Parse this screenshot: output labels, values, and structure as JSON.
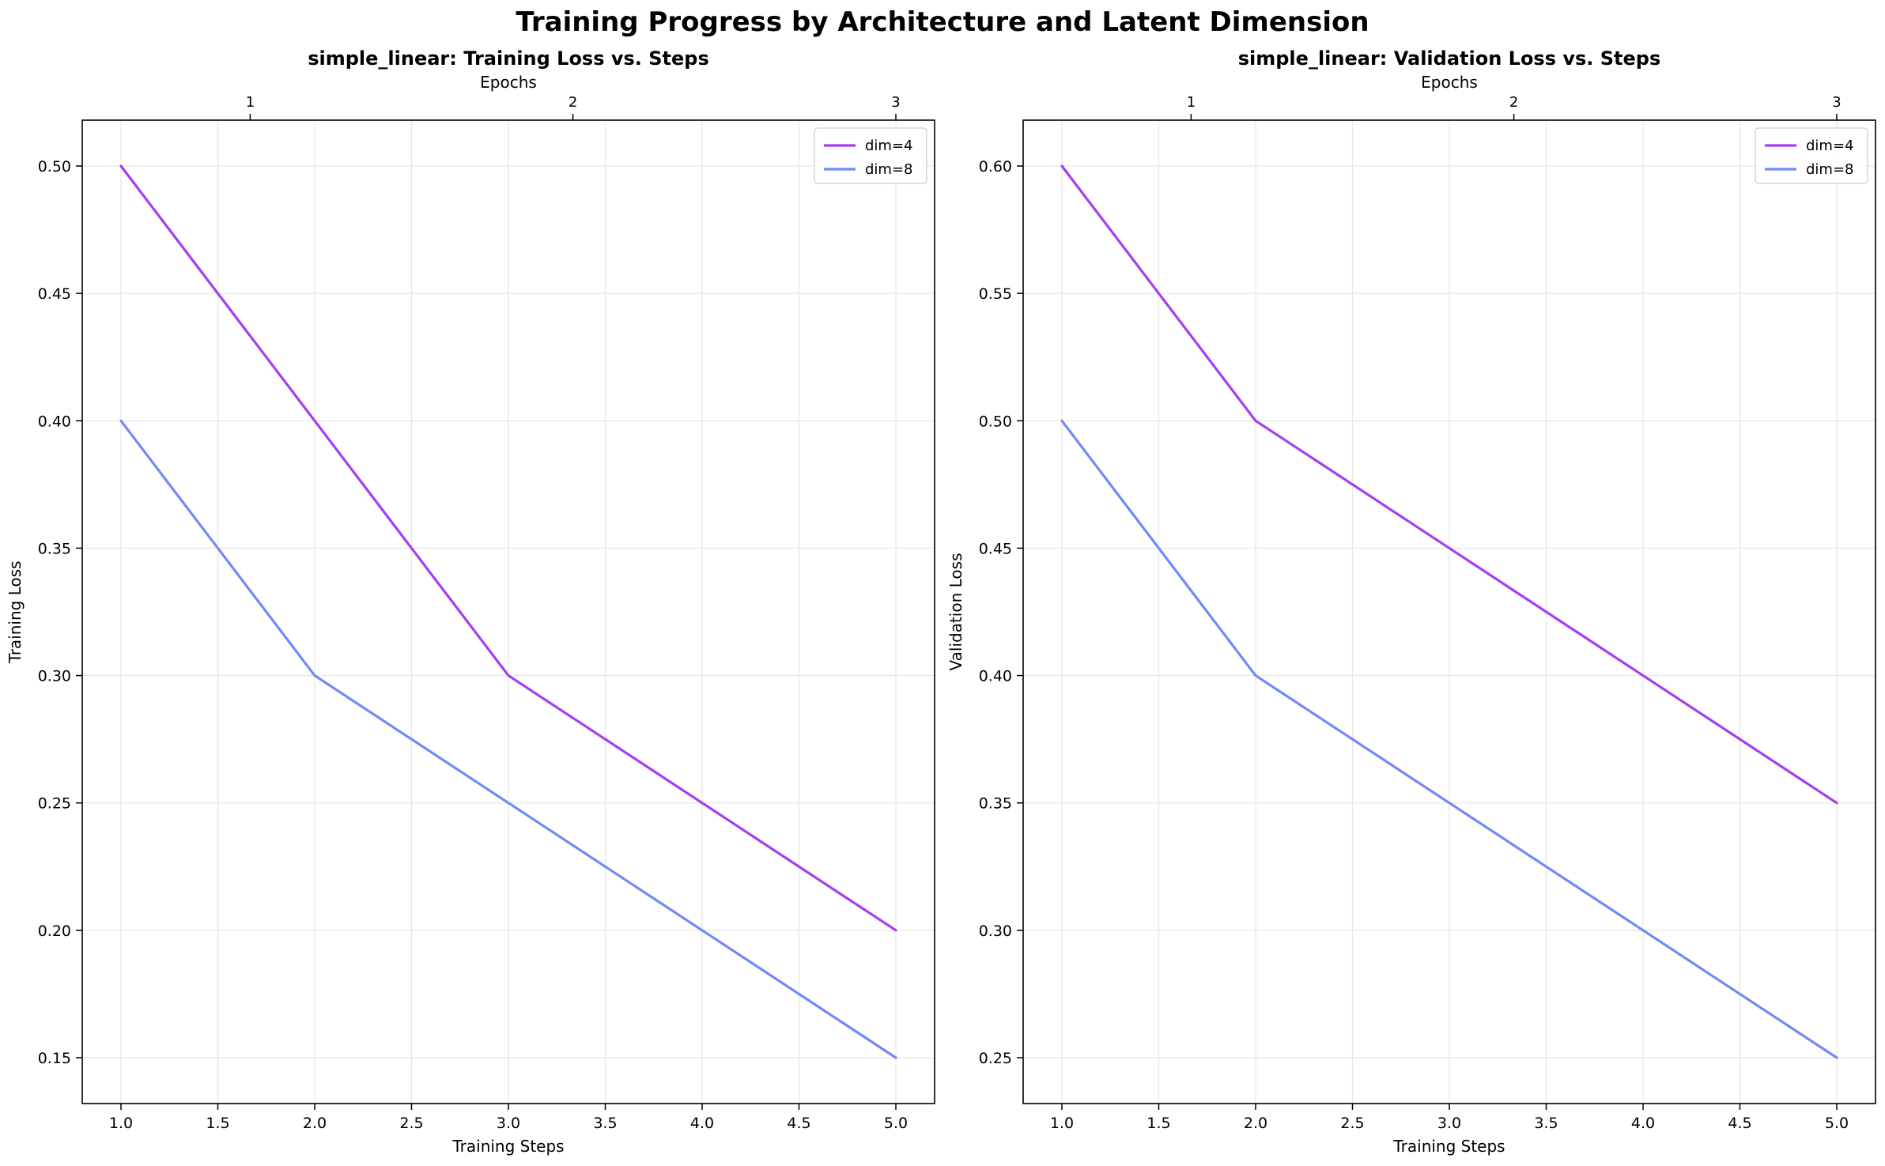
{
  "suptitle": "Training Progress by Architecture and Latent Dimension",
  "colors": {
    "dim4": "#a53df2",
    "dim8": "#7289f7",
    "grid": "#e6e6e6",
    "axis": "#000000"
  },
  "chart_data": [
    {
      "type": "line",
      "title": "simple_linear: Training Loss vs. Steps",
      "xlabel": "Training Steps",
      "ylabel": "Training Loss",
      "top_xlabel": "Epochs",
      "xlim": [
        0.8,
        5.2
      ],
      "ylim": [
        0.132,
        0.518
      ],
      "xticks": [
        1.0,
        1.5,
        2.0,
        2.5,
        3.0,
        3.5,
        4.0,
        4.5,
        5.0
      ],
      "xtick_labels": [
        "1.0",
        "1.5",
        "2.0",
        "2.5",
        "3.0",
        "3.5",
        "4.0",
        "4.5",
        "5.0"
      ],
      "yticks": [
        0.15,
        0.2,
        0.25,
        0.3,
        0.35,
        0.4,
        0.45,
        0.5
      ],
      "ytick_labels": [
        "0.15",
        "0.20",
        "0.25",
        "0.30",
        "0.35",
        "0.40",
        "0.45",
        "0.50"
      ],
      "top_xticks": [
        1.667,
        3.333,
        5.0
      ],
      "top_xtick_labels": [
        "1",
        "2",
        "3"
      ],
      "grid": true,
      "legend": "top-right",
      "x": [
        1,
        2,
        3,
        4,
        5
      ],
      "series": [
        {
          "name": "dim=4",
          "color": "#a53df2",
          "values": [
            0.5,
            0.4,
            0.3,
            0.25,
            0.2
          ]
        },
        {
          "name": "dim=8",
          "color": "#7289f7",
          "values": [
            0.4,
            0.3,
            0.25,
            0.2,
            0.15
          ]
        }
      ]
    },
    {
      "type": "line",
      "title": "simple_linear: Validation Loss vs. Steps",
      "xlabel": "Training Steps",
      "ylabel": "Validation Loss",
      "top_xlabel": "Epochs",
      "xlim": [
        0.8,
        5.2
      ],
      "ylim": [
        0.232,
        0.618
      ],
      "xticks": [
        1.0,
        1.5,
        2.0,
        2.5,
        3.0,
        3.5,
        4.0,
        4.5,
        5.0
      ],
      "xtick_labels": [
        "1.0",
        "1.5",
        "2.0",
        "2.5",
        "3.0",
        "3.5",
        "4.0",
        "4.5",
        "5.0"
      ],
      "yticks": [
        0.25,
        0.3,
        0.35,
        0.4,
        0.45,
        0.5,
        0.55,
        0.6
      ],
      "ytick_labels": [
        "0.25",
        "0.30",
        "0.35",
        "0.40",
        "0.45",
        "0.50",
        "0.55",
        "0.60"
      ],
      "top_xticks": [
        1.667,
        3.333,
        5.0
      ],
      "top_xtick_labels": [
        "1",
        "2",
        "3"
      ],
      "grid": true,
      "legend": "top-right",
      "x": [
        1,
        2,
        3,
        4,
        5
      ],
      "series": [
        {
          "name": "dim=4",
          "color": "#a53df2",
          "values": [
            0.6,
            0.5,
            0.45,
            0.4,
            0.35
          ]
        },
        {
          "name": "dim=8",
          "color": "#7289f7",
          "values": [
            0.5,
            0.4,
            0.35,
            0.3,
            0.25
          ]
        }
      ]
    }
  ]
}
